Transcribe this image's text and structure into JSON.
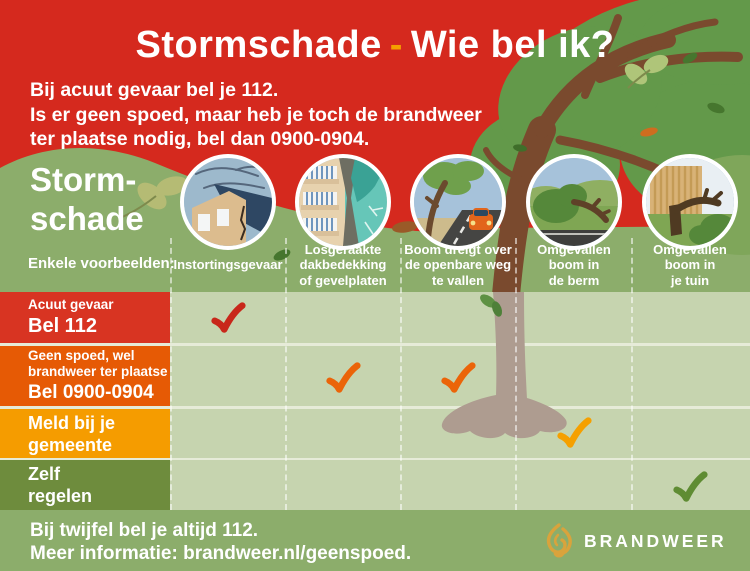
{
  "title": {
    "part1": "Stormschade",
    "dash": "-",
    "part2": "Wie bel ik?"
  },
  "intro": {
    "line1_pre": "Bij acuut gevaar bel je ",
    "line1_strong": "112",
    "line1_end": ".",
    "line2": "Is er geen spoed, maar heb je toch de brandweer",
    "line3_pre": "ter plaatse nodig, bel dan ",
    "line3_strong": "0900-0904",
    "line3_end": "."
  },
  "section_heading": "Storm-\nschade",
  "examples_label": "Enkele voorbeelden:",
  "columns": [
    {
      "caption": "Instortingsgevaar",
      "icon": "collapsing-house-icon"
    },
    {
      "caption": "Losgeraakte\ndakbedekking\nof gevelplaten",
      "icon": "loose-cladding-icon"
    },
    {
      "caption": "Boom dreigt over\nde openbare weg\nte vallen",
      "icon": "tree-over-road-icon"
    },
    {
      "caption": "Omgevallen\nboom in\nde berm",
      "icon": "fallen-tree-verge-icon"
    },
    {
      "caption": "Omgevallen\nboom in\nje tuin",
      "icon": "fallen-tree-garden-icon"
    }
  ],
  "rows": [
    {
      "label_small": "Acuut gevaar",
      "label_big": "Bel 112",
      "color": "#D83422",
      "check_color": "#C8271A",
      "checks": [
        true,
        false,
        false,
        false,
        false
      ]
    },
    {
      "label_small": "Geen spoed, wel\nbrandweer ter plaatse",
      "label_big": "Bel 0900-0904",
      "color": "#E65A05",
      "check_color": "#EB6409",
      "checks": [
        false,
        true,
        true,
        false,
        false
      ]
    },
    {
      "label_big": "Meld bij je\ngemeente",
      "color": "#F59C00",
      "check_color": "#F5A000",
      "checks": [
        false,
        false,
        false,
        true,
        false
      ]
    },
    {
      "label_big": "Zelf\nregelen",
      "color": "#6E8C3D",
      "check_color": "#5F8C33",
      "checks": [
        false,
        false,
        false,
        false,
        true
      ]
    }
  ],
  "footer": {
    "line1": "Bij twijfel bel je altijd 112.",
    "line2": "Meer informatie: brandweer.nl/geenspoed.",
    "brand": "BRANDWEER"
  },
  "colors": {
    "background_red": "#D5291E",
    "hill_green": "#8CAD6B",
    "canopy_green": "#63994A",
    "cell_green": "#C6D4AF",
    "accent_orange": "#F5A000",
    "brand_gold": "#D9A33C",
    "white": "#FFFFFF"
  }
}
